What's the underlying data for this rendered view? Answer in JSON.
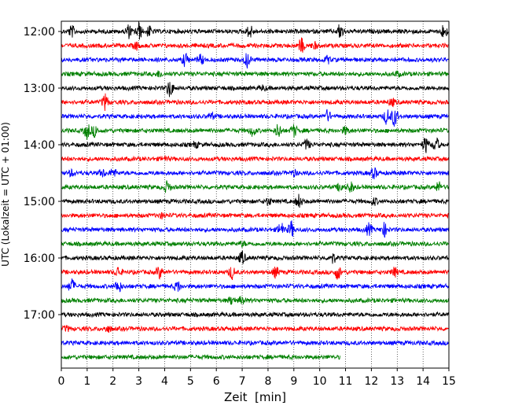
{
  "chart_data": {
    "type": "line",
    "title": "",
    "xlabel": "Zeit  [min]",
    "ylabel": "UTC (Lokalzeit = UTC + 01:00)",
    "xlim": [
      0,
      15
    ],
    "x_ticks": [
      0,
      1,
      2,
      3,
      4,
      5,
      6,
      7,
      8,
      9,
      10,
      11,
      12,
      13,
      14,
      15
    ],
    "x_tick_labels": [
      "0",
      "1",
      "2",
      "3",
      "4",
      "5",
      "6",
      "7",
      "8",
      "9",
      "10",
      "11",
      "12",
      "13",
      "14",
      "15"
    ],
    "y_tick_labels": [
      "12:00",
      "13:00",
      "14:00",
      "15:00",
      "16:00",
      "17:00"
    ],
    "y_tick_rows": [
      0,
      4,
      8,
      12,
      16,
      20
    ],
    "row_minutes": 15,
    "grid": "vertical dotted at each minute",
    "colors": [
      "#000000",
      "#ff0000",
      "#0000ff",
      "#008000"
    ],
    "series": [
      {
        "start": "12:00",
        "color": "#000000",
        "end_min": 15,
        "events": [
          [
            0.4,
            0.8
          ],
          [
            2.6,
            0.9
          ],
          [
            3.0,
            1.2
          ],
          [
            3.4,
            0.7
          ],
          [
            7.3,
            0.9
          ],
          [
            10.8,
            1.1
          ],
          [
            14.8,
            1.0
          ]
        ]
      },
      {
        "start": "12:15",
        "color": "#ff0000",
        "end_min": 15,
        "events": [
          [
            2.9,
            0.5
          ],
          [
            9.3,
            1.0
          ],
          [
            9.8,
            0.4
          ]
        ]
      },
      {
        "start": "12:30",
        "color": "#0000ff",
        "end_min": 15,
        "events": [
          [
            4.8,
            0.9
          ],
          [
            5.4,
            0.7
          ],
          [
            7.2,
            1.0
          ],
          [
            10.3,
            0.5
          ]
        ]
      },
      {
        "start": "12:45",
        "color": "#008000",
        "end_min": 15,
        "events": [
          [
            3.8,
            0.4
          ],
          [
            13.0,
            0.3
          ]
        ]
      },
      {
        "start": "13:00",
        "color": "#000000",
        "end_min": 15,
        "events": [
          [
            4.2,
            1.2
          ],
          [
            7.8,
            0.3
          ]
        ]
      },
      {
        "start": "13:15",
        "color": "#ff0000",
        "end_min": 15,
        "events": [
          [
            1.7,
            1.1
          ],
          [
            12.8,
            0.5
          ]
        ]
      },
      {
        "start": "13:30",
        "color": "#0000ff",
        "end_min": 15,
        "events": [
          [
            5.8,
            0.4
          ],
          [
            10.3,
            0.8
          ],
          [
            12.6,
            1.1
          ],
          [
            12.9,
            1.4
          ]
        ]
      },
      {
        "start": "13:45",
        "color": "#008000",
        "end_min": 15,
        "events": [
          [
            1.0,
            1.1
          ],
          [
            1.3,
            0.8
          ],
          [
            7.4,
            0.7
          ],
          [
            8.4,
            1.0
          ],
          [
            9.0,
            0.8
          ],
          [
            11.0,
            0.5
          ]
        ]
      },
      {
        "start": "14:00",
        "color": "#000000",
        "end_min": 15,
        "events": [
          [
            5.2,
            0.4
          ],
          [
            9.5,
            0.7
          ],
          [
            14.1,
            1.1
          ],
          [
            14.5,
            1.0
          ]
        ]
      },
      {
        "start": "14:15",
        "color": "#ff0000",
        "end_min": 15,
        "events": [
          [
            4.0,
            0.3
          ]
        ]
      },
      {
        "start": "14:30",
        "color": "#0000ff",
        "end_min": 15,
        "events": [
          [
            0.4,
            0.4
          ],
          [
            1.6,
            0.5
          ],
          [
            2.0,
            0.6
          ],
          [
            9.0,
            0.4
          ],
          [
            12.1,
            0.7
          ]
        ]
      },
      {
        "start": "14:45",
        "color": "#008000",
        "end_min": 15,
        "events": [
          [
            4.1,
            0.8
          ],
          [
            10.8,
            0.6
          ],
          [
            11.2,
            0.7
          ],
          [
            14.6,
            0.7
          ]
        ]
      },
      {
        "start": "15:00",
        "color": "#000000",
        "end_min": 15,
        "events": [
          [
            8.0,
            0.5
          ],
          [
            9.2,
            0.9
          ],
          [
            12.1,
            0.5
          ]
        ]
      },
      {
        "start": "15:15",
        "color": "#ff0000",
        "end_min": 15,
        "events": [
          [
            3.9,
            0.3
          ]
        ]
      },
      {
        "start": "15:30",
        "color": "#0000ff",
        "end_min": 15,
        "events": [
          [
            8.5,
            1.0
          ],
          [
            8.9,
            1.1
          ],
          [
            11.9,
            0.8
          ],
          [
            12.5,
            0.9
          ]
        ]
      },
      {
        "start": "15:45",
        "color": "#008000",
        "end_min": 15,
        "events": [
          [
            7.0,
            0.3
          ]
        ]
      },
      {
        "start": "16:00",
        "color": "#000000",
        "end_min": 15,
        "events": [
          [
            7.0,
            0.9
          ],
          [
            10.5,
            0.7
          ]
        ]
      },
      {
        "start": "16:15",
        "color": "#ff0000",
        "end_min": 15,
        "events": [
          [
            2.2,
            0.7
          ],
          [
            3.8,
            0.8
          ],
          [
            6.6,
            0.9
          ],
          [
            8.3,
            0.7
          ],
          [
            10.7,
            1.0
          ],
          [
            12.9,
            0.6
          ]
        ]
      },
      {
        "start": "16:30",
        "color": "#0000ff",
        "end_min": 15,
        "events": [
          [
            0.4,
            1.0
          ],
          [
            2.2,
            0.9
          ],
          [
            4.5,
            0.7
          ]
        ]
      },
      {
        "start": "16:45",
        "color": "#008000",
        "end_min": 15,
        "events": [
          [
            6.6,
            0.5
          ],
          [
            7.0,
            0.6
          ]
        ]
      },
      {
        "start": "17:00",
        "color": "#000000",
        "end_min": 15,
        "events": []
      },
      {
        "start": "17:15",
        "color": "#ff0000",
        "end_min": 15,
        "events": [
          [
            0.2,
            0.3
          ],
          [
            1.8,
            0.4
          ]
        ]
      },
      {
        "start": "17:30",
        "color": "#0000ff",
        "end_min": 15,
        "events": []
      },
      {
        "start": "17:45",
        "color": "#008000",
        "end_min": 10.8,
        "events": []
      }
    ]
  }
}
